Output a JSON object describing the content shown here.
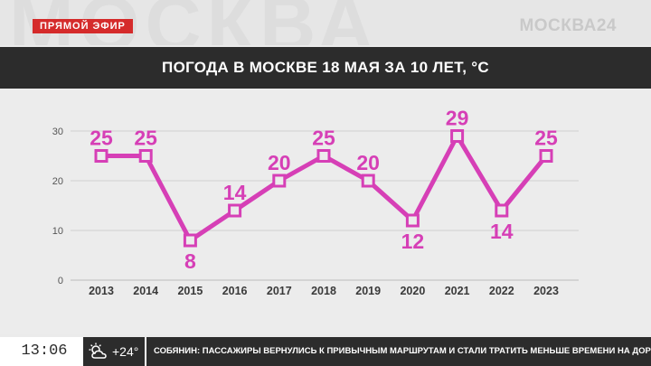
{
  "broadcast": {
    "live_badge": "ПРЯМОЙ ЭФИР",
    "channel_logo": "МОСКВА24",
    "watermark": "МОСКВА"
  },
  "chart_data": {
    "type": "line",
    "title": "ПОГОДА В МОСКВЕ 18 МАЯ ЗА 10 ЛЕТ, °С",
    "xlabel": "",
    "ylabel": "",
    "categories": [
      "2013",
      "2014",
      "2015",
      "2016",
      "2017",
      "2018",
      "2019",
      "2020",
      "2021",
      "2022",
      "2023"
    ],
    "values": [
      25,
      25,
      8,
      14,
      20,
      25,
      20,
      12,
      29,
      14,
      25
    ],
    "label_below": [
      false,
      false,
      true,
      false,
      false,
      false,
      false,
      true,
      false,
      true,
      false
    ],
    "ylim": [
      0,
      30
    ],
    "yticks": [
      0,
      10,
      20,
      30
    ],
    "grid": true,
    "legend": "none",
    "line_color": "#d63fb6",
    "marker": "square-open"
  },
  "ticker": {
    "time": "13:06",
    "weather_icon": "cloud-sun-icon",
    "temperature": "+24°",
    "headline": "СОБЯНИН: ПАССАЖИРЫ ВЕРНУЛИСЬ К ПРИВЫЧНЫМ МАРШРУТАМ И СТАЛИ ТРАТИТЬ МЕНЬШЕ ВРЕМЕНИ НА ДОРОГУ"
  }
}
